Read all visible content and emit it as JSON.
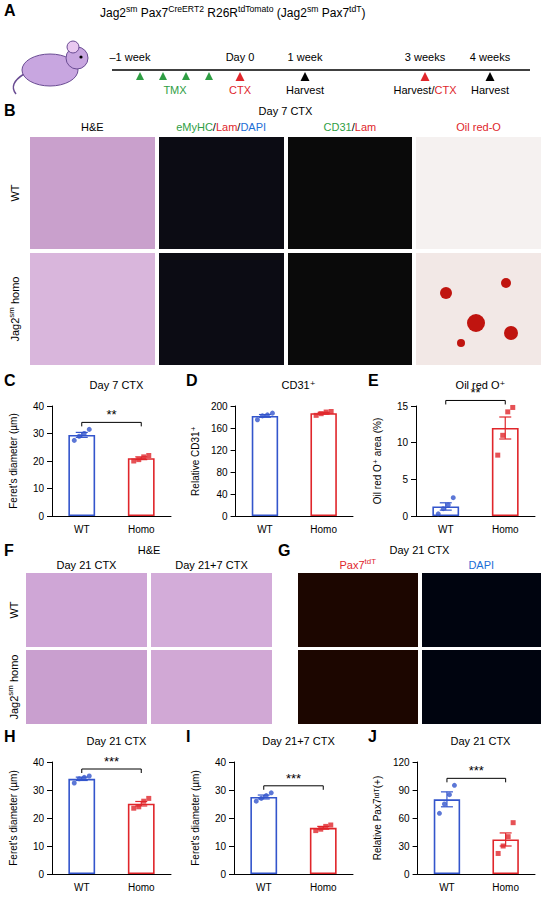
{
  "chart_data": [
    {
      "type": "bar",
      "panel": "C",
      "title": "Day 7 CTX",
      "y_label": "Feret's diameter (µm)",
      "categories": [
        "WT",
        "Homo"
      ],
      "values": [
        29.5,
        21
      ],
      "errors": [
        0.9,
        0.5
      ],
      "points": [
        [
          27.5,
          29,
          30,
          31.5
        ],
        [
          20,
          20.5,
          21.5,
          22
        ]
      ],
      "colors": [
        "#3355cc",
        "#e0262b"
      ],
      "marker": [
        "circle",
        "square"
      ],
      "ylim": [
        0,
        40
      ],
      "yticks": [
        0,
        10,
        20,
        30,
        40
      ],
      "grid": false,
      "annotation": "**"
    },
    {
      "type": "bar",
      "panel": "D",
      "title": "CD31⁺",
      "y_label": "Relative CD31⁺",
      "categories": [
        "WT",
        "Homo"
      ],
      "values": [
        182,
        187
      ],
      "errors": [
        2.5,
        1.5
      ],
      "points": [
        [
          175,
          182,
          184,
          187
        ],
        [
          183,
          186,
          189,
          190
        ]
      ],
      "colors": [
        "#3355cc",
        "#e0262b"
      ],
      "marker": [
        "circle",
        "square"
      ],
      "ylim": [
        0,
        200
      ],
      "yticks": [
        0,
        40,
        80,
        120,
        160,
        200
      ],
      "grid": false
    },
    {
      "type": "bar",
      "panel": "E",
      "title": "Oil red O⁺",
      "y_label": "Oil red O⁺ area (%)",
      "categories": [
        "WT",
        "Homo"
      ],
      "values": [
        1.3,
        12
      ],
      "errors": [
        0.5,
        1.5
      ],
      "points": [
        [
          0.3,
          1,
          1.5,
          2.5
        ],
        [
          8.3,
          11,
          14.2,
          14.8
        ]
      ],
      "colors": [
        "#3355cc",
        "#e0262b"
      ],
      "marker": [
        "circle",
        "square"
      ],
      "ylim": [
        0,
        15
      ],
      "yticks": [
        0,
        5,
        10,
        15
      ],
      "grid": false,
      "annotation": "**"
    },
    {
      "type": "bar",
      "panel": "H",
      "title": "Day 21 CTX",
      "y_label": "Feret's diameter (µm)",
      "categories": [
        "WT",
        "Homo"
      ],
      "values": [
        34,
        25.1
      ],
      "errors": [
        0.6,
        0.8
      ],
      "points": [
        [
          32.5,
          34,
          34.5,
          35
        ],
        [
          23.5,
          24,
          26,
          27
        ]
      ],
      "colors": [
        "#3355cc",
        "#e0262b"
      ],
      "marker": [
        "circle",
        "square"
      ],
      "ylim": [
        0,
        40
      ],
      "yticks": [
        0,
        10,
        20,
        30,
        40
      ],
      "grid": false,
      "annotation": "***"
    },
    {
      "type": "bar",
      "panel": "I",
      "title": "Day 21+7 CTX",
      "y_label": "Feret's diameter (µm)",
      "categories": [
        "WT",
        "Homo"
      ],
      "values": [
        27.5,
        16.5
      ],
      "errors": [
        0.7,
        0.5
      ],
      "points": [
        [
          26,
          27,
          28,
          29
        ],
        [
          15.5,
          16,
          17,
          17.5
        ]
      ],
      "colors": [
        "#3355cc",
        "#e0262b"
      ],
      "marker": [
        "circle",
        "square"
      ],
      "ylim": [
        0,
        40
      ],
      "yticks": [
        0,
        10,
        20,
        30,
        40
      ],
      "grid": false,
      "annotation": "***"
    },
    {
      "type": "bar",
      "panel": "J",
      "title": "Day 21 CTX",
      "y_label": "Relative Pax7ᵗᵈᵀ(+)",
      "categories": [
        "WT",
        "Homo"
      ],
      "values": [
        80,
        37
      ],
      "errors": [
        8,
        7
      ],
      "points": [
        [
          65,
          75,
          85,
          95
        ],
        [
          22,
          30,
          40,
          55
        ]
      ],
      "colors": [
        "#3355cc",
        "#e0262b"
      ],
      "marker": [
        "circle",
        "square"
      ],
      "ylim": [
        0,
        120
      ],
      "yticks": [
        0,
        30,
        60,
        90,
        120
      ],
      "grid": false,
      "annotation": "***"
    }
  ],
  "panel_a": {
    "panel": "A",
    "title": [
      {
        "text": "Jag2"
      },
      {
        "text": "sm",
        "sup": true
      },
      {
        "text": " Pax7"
      },
      {
        "text": "CreERT2",
        "sup": true
      },
      {
        "text": " R26R"
      },
      {
        "text": "tdTomato",
        "sup": true
      },
      {
        "text": " (Jag2"
      },
      {
        "text": "sm",
        "sup": true
      },
      {
        "text": " Pax7"
      },
      {
        "text": "tdT",
        "sup": true
      },
      {
        "text": ")"
      }
    ],
    "treatment": [
      {
        "text": "TMX",
        "color": "#2f9e44"
      }
    ],
    "timeline": [
      {
        "time": "–1 week"
      },
      {
        "time": "Day 0",
        "color": "#e0262b",
        "event": [
          {
            "text": "CTX",
            "color": "#e0262b"
          }
        ]
      },
      {
        "time": "1 week",
        "color": "#000000",
        "event": [
          {
            "text": "Harvest"
          }
        ]
      },
      {
        "time": "3 weeks",
        "color": "#e0262b",
        "event": [
          {
            "text": "Harvest/"
          },
          {
            "text": "CTX",
            "color": "#e0262b"
          }
        ]
      },
      {
        "time": "4 weeks",
        "color": "#000000",
        "event": [
          {
            "text": "Harvest"
          }
        ]
      }
    ]
  },
  "panel_b": {
    "panel": "B",
    "title": "Day 7 CTX",
    "columns": [
      [
        {
          "text": "H&E"
        }
      ],
      [
        {
          "text": "eMyHC",
          "color": "#2f9e44"
        },
        {
          "text": "/"
        },
        {
          "text": "Lam",
          "color": "#e0262b"
        },
        {
          "text": "/"
        },
        {
          "text": "DAPI",
          "color": "#1c6ed6"
        }
      ],
      [
        {
          "text": "CD31",
          "color": "#2f9e44"
        },
        {
          "text": "/"
        },
        {
          "text": "Lam",
          "color": "#e0262b"
        }
      ],
      [
        {
          "text": "Oil red-O",
          "color": "#e0262b"
        }
      ]
    ],
    "rows": [
      [
        {
          "text": "WT"
        }
      ],
      [
        {
          "text": "Jag2"
        },
        {
          "text": "sm",
          "sup": true
        },
        {
          "text": " homo"
        }
      ]
    ]
  },
  "panel_f": {
    "panel": "F",
    "title": "H&E",
    "columns": [
      [
        {
          "text": "Day 21 CTX"
        }
      ],
      [
        {
          "text": "Day 21+7 CTX"
        }
      ]
    ],
    "rows": [
      [
        {
          "text": "WT"
        }
      ],
      [
        {
          "text": "Jag2"
        },
        {
          "text": "sm",
          "sup": true
        },
        {
          "text": " homo"
        }
      ]
    ]
  },
  "panel_g": {
    "panel": "G",
    "title": "Day 21 CTX",
    "columns": [
      [
        {
          "text": "Pax7",
          "color": "#e0262b"
        },
        {
          "text": "tdT",
          "sup": true,
          "color": "#e0262b"
        }
      ],
      [
        {
          "text": "DAPI",
          "color": "#1c6ed6"
        }
      ]
    ]
  }
}
